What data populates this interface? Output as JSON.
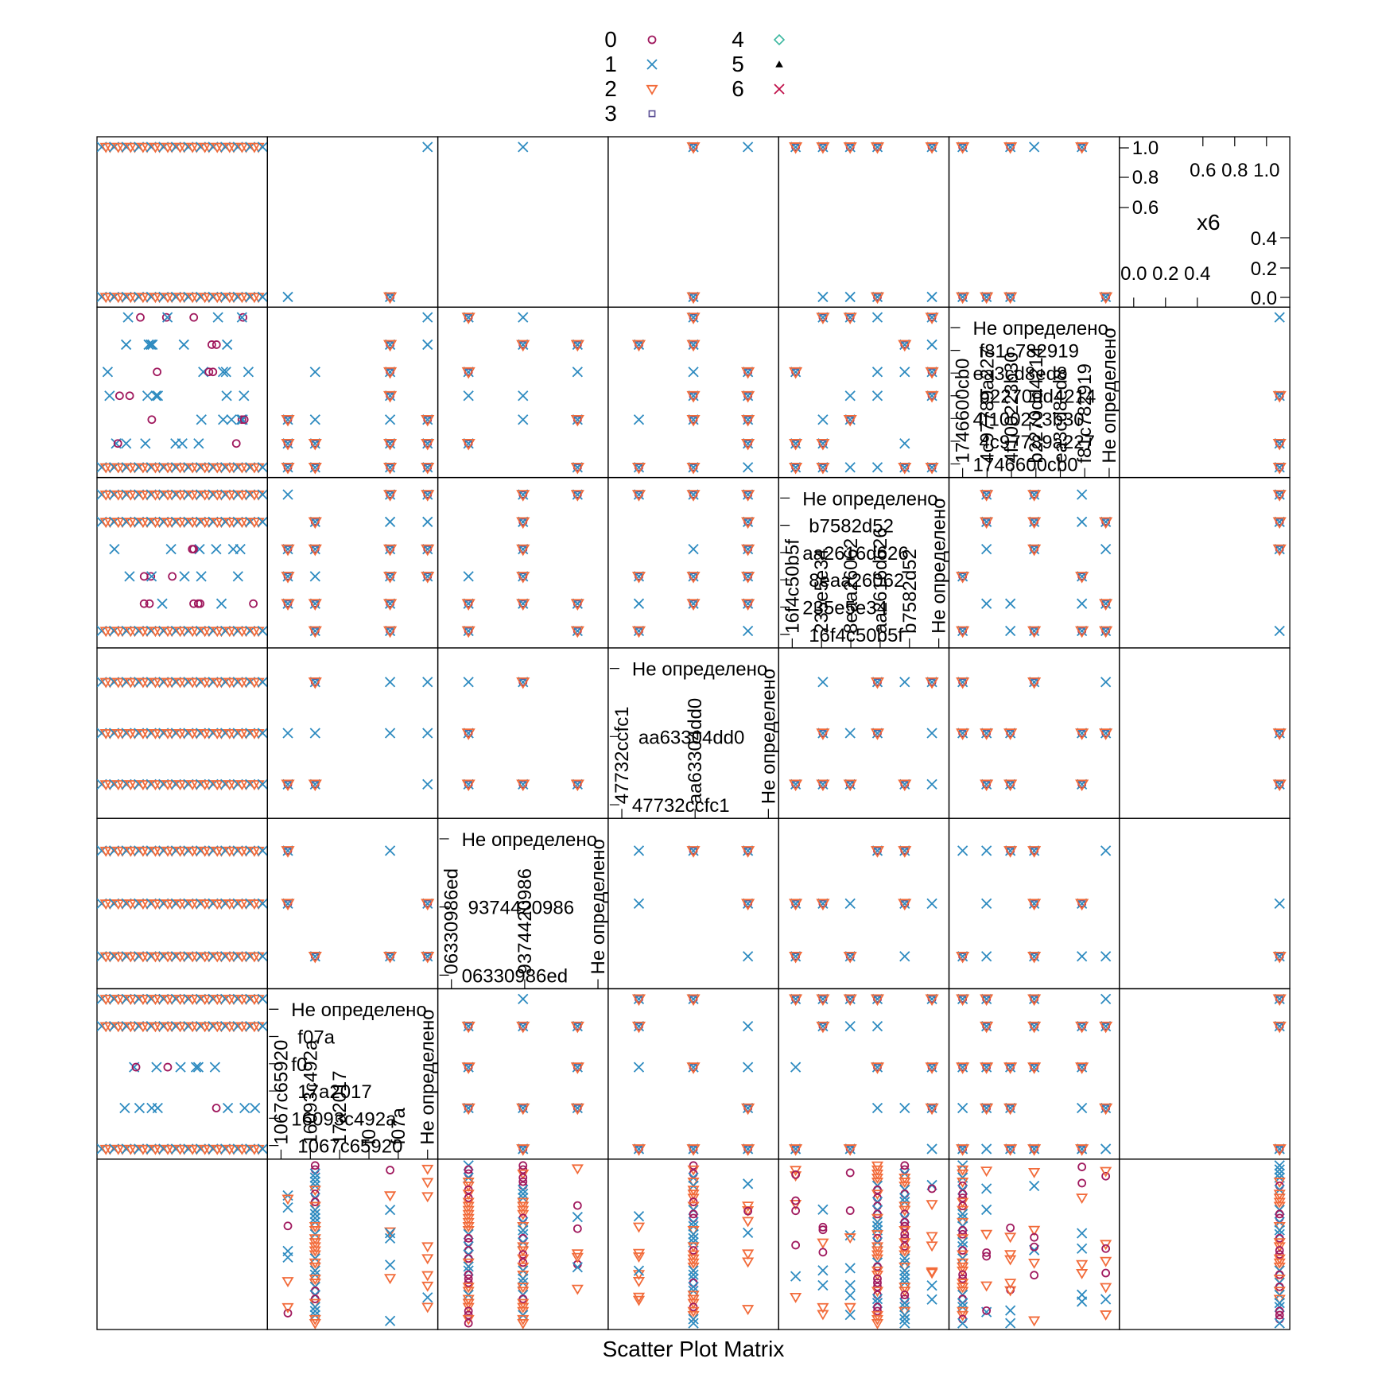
{
  "chart_data": {
    "type": "scatter",
    "title": "",
    "xlabel": "Scatter Plot Matrix",
    "ylabel": "",
    "legend": {
      "placement": "top",
      "entries": [
        {
          "label": "0",
          "color": "#A0195E",
          "shape": "circle"
        },
        {
          "label": "1",
          "color": "#2E8BC0",
          "shape": "cross"
        },
        {
          "label": "2",
          "color": "#F26B3A",
          "shape": "triangle-down"
        },
        {
          "label": "3",
          "color": "#5A4E94",
          "shape": "square"
        },
        {
          "label": "4",
          "color": "#3CB8A0",
          "shape": "diamond"
        },
        {
          "label": "5",
          "color": "#000000",
          "shape": "triangle-up"
        },
        {
          "label": "6",
          "color": "#C0104A",
          "shape": "x"
        }
      ]
    },
    "variables": [
      {
        "name": "",
        "kind": "categorical",
        "levels": []
      },
      {
        "name": "",
        "kind": "categorical",
        "levels": [
          "1067c65920",
          "16093c492a",
          "17a2017",
          "f0",
          "f07a",
          "Не определено"
        ]
      },
      {
        "name": "",
        "kind": "categorical",
        "levels": [
          "06330986ed",
          "9374420986",
          "Не определено"
        ]
      },
      {
        "name": "",
        "kind": "categorical",
        "levels": [
          "47732ccfc1",
          "aa63304dd0",
          "Не определено"
        ]
      },
      {
        "name": "",
        "kind": "categorical",
        "levels": [
          "16f4c50b5f",
          "235e5e34",
          "8eaa26062",
          "aa2616d626",
          "b7582d52",
          "Не определено"
        ]
      },
      {
        "name": "",
        "kind": "categorical",
        "levels": [
          "1746600cb0",
          "4c97789a227",
          "4f100223b30",
          "b2270dd4214",
          "ea3cd8ed8",
          "f81c782919",
          "Не определено"
        ]
      },
      {
        "name": "x6",
        "kind": "numeric",
        "range": [
          0,
          1
        ],
        "ticks_left": [
          "0.0",
          "0.2",
          "0.4"
        ],
        "ticks_right": [
          "0.6",
          "0.8",
          "1.0"
        ]
      }
    ],
    "diagonal_labels": {
      "c5": [
        "Не определено",
        "f81c782919",
        "ea3cd8ed8",
        "b2270dd4214",
        "4f100223b30",
        "4c97789a227",
        "1746600cb0"
      ],
      "c4": [
        "Не определено",
        "b7582d52",
        "aa2616d626",
        "8eaa26062",
        "235e5e34",
        "16f4c50b5f"
      ],
      "c3": [
        "Не определено",
        "aa63304dd0",
        "47732ccfc1"
      ],
      "c2": [
        "Не определено",
        "9374420986",
        "06330986ed"
      ],
      "c1": [
        "Не определено",
        "f07a",
        "f0",
        "17a2017",
        "16093c492a",
        "1067c65920"
      ]
    },
    "x6": {
      "label": "x6",
      "upper_ticks": [
        "0.6",
        "0.8",
        "1.0"
      ],
      "lower_ticks": [
        "0.0",
        "0.2",
        "0.4"
      ],
      "right_ticks": [
        "1.0",
        "0.8",
        "0.6"
      ],
      "left_ticks": [
        "0.4",
        "0.2",
        "0.0"
      ]
    },
    "grid": false
  }
}
